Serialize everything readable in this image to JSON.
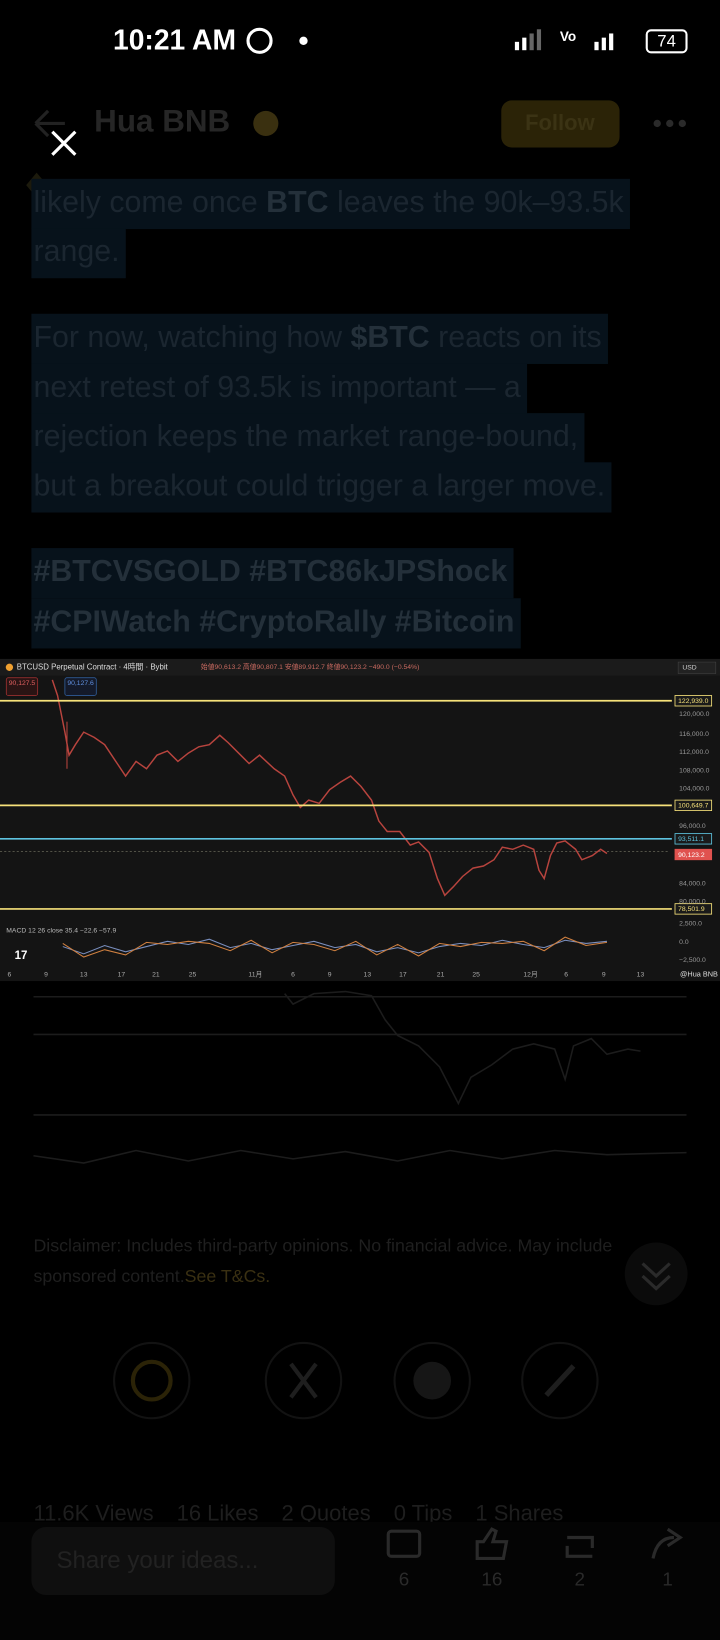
{
  "status_bar": {
    "time": "10:21 AM",
    "battery": "74"
  },
  "header": {
    "author": "Hua BNB",
    "follow": "Follow"
  },
  "article": {
    "paragraphs": [
      [
        [
          {
            "text": "likely come once "
          },
          {
            "text": "BTC",
            "bold": true
          },
          {
            "text": " leaves the 90k–93.5k"
          }
        ],
        [
          {
            "text": "range."
          }
        ]
      ],
      [
        [
          {
            "text": "For now, watching how "
          },
          {
            "text": "$BTC",
            "bold": true
          },
          {
            "text": " reacts on its"
          }
        ],
        [
          {
            "text": "next retest of 93.5k is important — a"
          }
        ],
        [
          {
            "text": "rejection keeps the market range-bound,"
          }
        ],
        [
          {
            "text": "but a breakout could trigger a larger move."
          }
        ]
      ],
      [
        [
          {
            "text": "#BTCVSGOLD #BTC86kJPShock",
            "bold": true
          }
        ],
        [
          {
            "text": "#CPIWatch #CryptoRally #Bitcoin",
            "bold": true
          }
        ]
      ]
    ]
  },
  "chart_image": {
    "title": "BTCUSD Perpetual Contract · 4時間 · Bybit",
    "ohlc": "始値90,613.2 高値90,807.1 安値89,912.7 終値90,123.2 −490.0 (−0.54%)",
    "sell": "90,127.5",
    "buy": "90,127.6",
    "currency": "USD",
    "level_labels": [
      {
        "label": "122,939.0",
        "color": "#f7e27a"
      },
      {
        "label": "100,649.7",
        "color": "#f7e27a"
      },
      {
        "label": "93,511.1",
        "color": "#5ec4e0"
      },
      {
        "label": "90,123.2",
        "color": "#e0524f"
      },
      {
        "label": "78,501.9",
        "color": "#f7e27a"
      }
    ],
    "price_axis": [
      "120,000.0",
      "116,000.0",
      "112,000.0",
      "108,000.0",
      "104,000.0",
      "96,000.0",
      "84,000.0",
      "80,000.0",
      "2,500.0",
      "0.0",
      "−2,500.0"
    ],
    "indicator": "MACD 12 26 close 35.4 −22.6 −57.9",
    "time_axis": [
      "6",
      "9",
      "13",
      "17",
      "21",
      "25",
      "11月",
      "6",
      "9",
      "13",
      "17",
      "21",
      "25",
      "12月",
      "6",
      "9",
      "13"
    ],
    "watermark": "@Hua BNB"
  },
  "disclaimer": {
    "lines": [
      "Disclaimer: Includes third-party opinions. No financial advice. May include",
      "sponsored content. "
    ],
    "link": "See T&Cs."
  },
  "stats": [
    "11.6K Views",
    "16 Likes",
    "2 Quotes",
    "0 Tips",
    "1 Shares"
  ],
  "share_placeholder": "Share your ideas...",
  "actions": [
    "6",
    "16",
    "2",
    "1"
  ]
}
